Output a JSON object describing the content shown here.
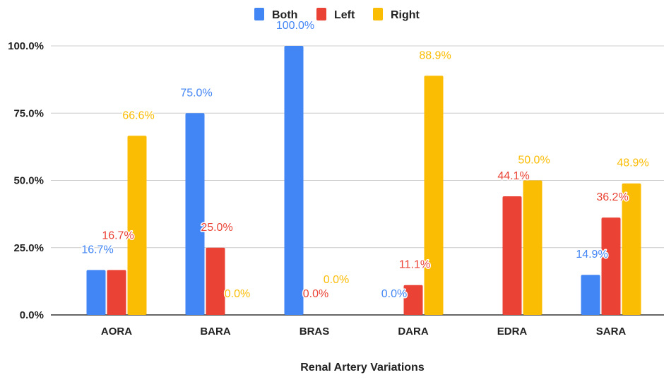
{
  "chart_data": {
    "type": "bar",
    "title": "",
    "xlabel": "Renal Artery Variations",
    "ylabel": "",
    "ylim": [
      0,
      100
    ],
    "yticks": [
      "0.0%",
      "25.0%",
      "50.0%",
      "75.0%",
      "100.0%"
    ],
    "ytick_values": [
      0,
      25,
      50,
      75,
      100
    ],
    "categories": [
      "AORA",
      "BARA",
      "BRAS",
      "DARA",
      "EDRA",
      "SARA"
    ],
    "legend_position": "top",
    "grid": true,
    "series": [
      {
        "name": "Both",
        "color": "#4285f4",
        "values": [
          16.7,
          75.0,
          100.0,
          0.0,
          null,
          14.9
        ],
        "labels": [
          "16.7%",
          "75.0%",
          "100.0%",
          "0.0%",
          null,
          "14.9%"
        ]
      },
      {
        "name": "Left",
        "color": "#ea4335",
        "values": [
          16.7,
          25.0,
          0.0,
          11.1,
          44.1,
          36.2
        ],
        "labels": [
          "16.7%",
          "25.0%",
          "0.0%",
          "11.1%",
          "44.1%",
          "36.2%"
        ]
      },
      {
        "name": "Right",
        "color": "#fbbc04",
        "values": [
          66.6,
          0.0,
          0.0,
          88.9,
          50.0,
          48.9
        ],
        "labels": [
          "66.6%",
          "0.0%",
          "0.0%",
          "88.9%",
          "50.0%",
          "48.9%"
        ]
      }
    ]
  }
}
